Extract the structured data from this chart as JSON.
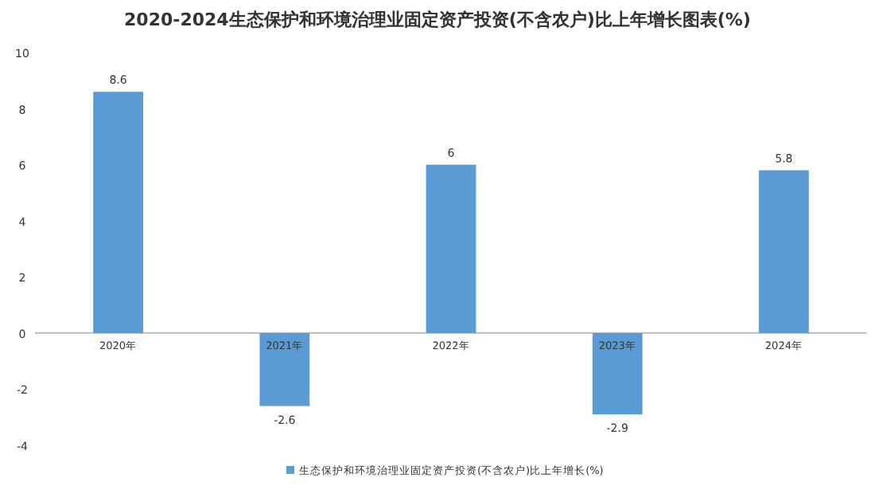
{
  "chart_data": {
    "type": "bar",
    "title": "2020-2024生态保护和环境治理业固定资产投资(不含农户)比上年增长图表(%)",
    "categories": [
      "2020年",
      "2021年",
      "2022年",
      "2023年",
      "2024年"
    ],
    "series": [
      {
        "name": "生态保护和环境治理业固定资产投资(不含农户)比上年增长(%)",
        "color": "#5b9bd5",
        "values": [
          8.6,
          -2.6,
          6,
          -2.9,
          5.8
        ]
      }
    ],
    "ylim": [
      -4,
      10
    ],
    "yticks": [
      -4,
      -2,
      0,
      2,
      4,
      6,
      8,
      10
    ],
    "data_labels": true,
    "legend": "bottom",
    "grid": false
  }
}
